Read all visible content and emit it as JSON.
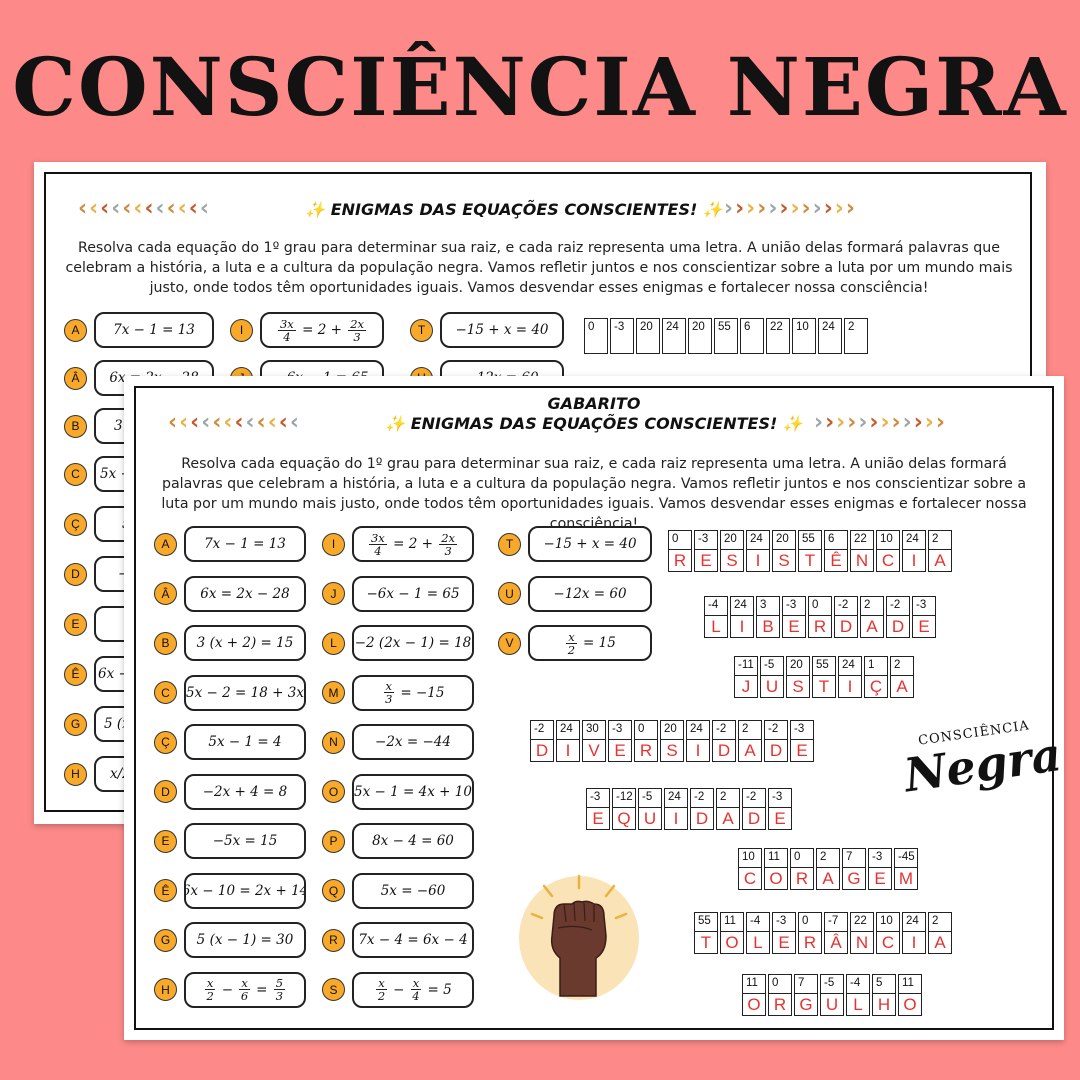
{
  "main_title": "CONSCIÊNCIA NEGRA",
  "worksheet": {
    "title": "ENIGMAS DAS EQUAÇÕES CONSCIENTES!",
    "star": "✨",
    "intro": "Resolva cada equação do 1º grau para determinar sua raiz, e cada raiz representa uma letra. A união delas formará palavras que celebram a história, a luta e a cultura da população negra. Vamos refletir juntos e nos conscientizar sobre a luta por um mundo mais justo, onde todos têm oportunidades iguais. Vamos desvendar esses enigmas e fortalecer nossa consciência!",
    "top_numbers": [
      "0",
      "-3",
      "20",
      "24",
      "20",
      "55",
      "6",
      "22",
      "10",
      "24",
      "2"
    ],
    "back_visible": {
      "col1": [
        {
          "l": "A",
          "eq": "7x − 1 = 13"
        },
        {
          "l": "Â",
          "eq": "6x = 2x − 28"
        },
        {
          "l": "B",
          "eq": "3"
        },
        {
          "l": "C",
          "eq": "5x −"
        },
        {
          "l": "Ç",
          "eq": "5"
        },
        {
          "l": "D",
          "eq": "−"
        },
        {
          "l": "E",
          "eq": ""
        },
        {
          "l": "Ê",
          "eq": "6x −"
        },
        {
          "l": "G",
          "eq": "5 (x"
        },
        {
          "l": "H",
          "eq": "x/2"
        }
      ],
      "col2_first": {
        "l": "I"
      },
      "col2_second": {
        "l": "J",
        "eq": "−6x − 1 = 65"
      },
      "col3_first": {
        "l": "T",
        "eq": "−15 + x = 40"
      },
      "col3_second": {
        "l": "U",
        "eq": "−12x = 60"
      }
    }
  },
  "answer_key": {
    "label": "GABARITO",
    "title": "ENIGMAS DAS EQUAÇÕES CONSCIENTES!",
    "intro": "Resolva cada equação do 1º grau para determinar sua raiz, e cada raiz representa uma letra. A união delas formará palavras que celebram a história, a luta e a cultura da população negra. Vamos refletir juntos e nos conscientizar sobre a luta por um mundo mais justo, onde todos têm oportunidades iguais. Vamos desvendar esses enigmas e fortalecer nossa consciência!",
    "col1": [
      {
        "l": "A",
        "eq": "7x − 1 = 13"
      },
      {
        "l": "Â",
        "eq": "6x = 2x − 28"
      },
      {
        "l": "B",
        "eq": "3 (x + 2) = 15"
      },
      {
        "l": "C",
        "eq": "5x − 2 = 18 + 3x"
      },
      {
        "l": "Ç",
        "eq": "5x − 1 = 4"
      },
      {
        "l": "D",
        "eq": "−2x + 4 = 8"
      },
      {
        "l": "E",
        "eq": "−5x = 15"
      },
      {
        "l": "Ê",
        "eq": "6x − 10 = 2x + 14"
      },
      {
        "l": "G",
        "eq": "5 (x − 1) = 30"
      },
      {
        "l": "H",
        "eq": "x/2 − x/6 = 5/3"
      }
    ],
    "col2": [
      {
        "l": "I",
        "eq": "3x/4 = 2 + 2x/3"
      },
      {
        "l": "J",
        "eq": "−6x − 1 = 65"
      },
      {
        "l": "L",
        "eq": "−2 (2x − 1) = 18"
      },
      {
        "l": "M",
        "eq": "x/3 = −15"
      },
      {
        "l": "N",
        "eq": "−2x = −44"
      },
      {
        "l": "O",
        "eq": "5x − 1 = 4x + 10"
      },
      {
        "l": "P",
        "eq": "8x − 4 = 60"
      },
      {
        "l": "Q",
        "eq": "5x = −60"
      },
      {
        "l": "R",
        "eq": "7x − 4 = 6x − 4"
      },
      {
        "l": "S",
        "eq": "x/2 − x/4 = 5"
      }
    ],
    "col3": [
      {
        "l": "T",
        "eq": "−15 + x = 40"
      },
      {
        "l": "U",
        "eq": "−12x = 60"
      },
      {
        "l": "V",
        "eq": "x/2 = 15"
      }
    ],
    "words": [
      {
        "nums": [
          "0",
          "-3",
          "20",
          "24",
          "20",
          "55",
          "6",
          "22",
          "10",
          "24",
          "2"
        ],
        "letters": [
          "R",
          "E",
          "S",
          "I",
          "S",
          "T",
          "Ê",
          "N",
          "C",
          "I",
          "A"
        ]
      },
      {
        "nums": [
          "-4",
          "24",
          "3",
          "-3",
          "0",
          "-2",
          "2",
          "-2",
          "-3"
        ],
        "letters": [
          "L",
          "I",
          "B",
          "E",
          "R",
          "D",
          "A",
          "D",
          "E"
        ]
      },
      {
        "nums": [
          "-11",
          "-5",
          "20",
          "55",
          "24",
          "1",
          "2"
        ],
        "letters": [
          "J",
          "U",
          "S",
          "T",
          "I",
          "Ç",
          "A"
        ]
      },
      {
        "nums": [
          "-2",
          "24",
          "30",
          "-3",
          "0",
          "20",
          "24",
          "-2",
          "2",
          "-2",
          "-3"
        ],
        "letters": [
          "D",
          "I",
          "V",
          "E",
          "R",
          "S",
          "I",
          "D",
          "A",
          "D",
          "E"
        ]
      },
      {
        "nums": [
          "-3",
          "-12",
          "-5",
          "24",
          "-2",
          "2",
          "-2",
          "-3"
        ],
        "letters": [
          "E",
          "Q",
          "U",
          "I",
          "D",
          "A",
          "D",
          "E"
        ]
      },
      {
        "nums": [
          "10",
          "11",
          "0",
          "2",
          "7",
          "-3",
          "-45"
        ],
        "letters": [
          "C",
          "O",
          "R",
          "A",
          "G",
          "E",
          "M"
        ]
      },
      {
        "nums": [
          "55",
          "11",
          "-4",
          "-3",
          "0",
          "-7",
          "22",
          "10",
          "24",
          "2"
        ],
        "letters": [
          "T",
          "O",
          "L",
          "E",
          "R",
          "Â",
          "N",
          "C",
          "I",
          "A"
        ]
      },
      {
        "nums": [
          "11",
          "0",
          "7",
          "-5",
          "-4",
          "5",
          "11"
        ],
        "letters": [
          "O",
          "R",
          "G",
          "U",
          "L",
          "H",
          "O"
        ]
      }
    ],
    "logo_line1": "CONSCIÊNCIA",
    "logo_line2": "Negra"
  },
  "colors": {
    "background": "#fd8a89",
    "accent": "#f8a92a",
    "answer": "#e8322f"
  }
}
